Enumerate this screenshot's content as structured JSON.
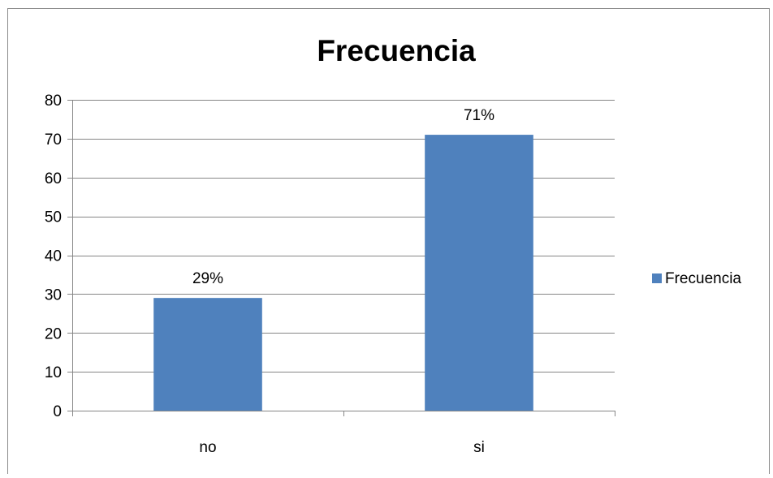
{
  "chart_data": {
    "type": "bar",
    "title": "Frecuencia",
    "categories": [
      "no",
      "si"
    ],
    "series": [
      {
        "name": "Frecuencia",
        "values": [
          29,
          71
        ],
        "color": "#4f81bd"
      }
    ],
    "data_labels": [
      "29%",
      "71%"
    ],
    "ylim": [
      0,
      80
    ],
    "yticks": [
      0,
      10,
      20,
      30,
      40,
      50,
      60,
      70,
      80
    ],
    "grid": true,
    "legend": "right",
    "xlabel": "",
    "ylabel": ""
  }
}
